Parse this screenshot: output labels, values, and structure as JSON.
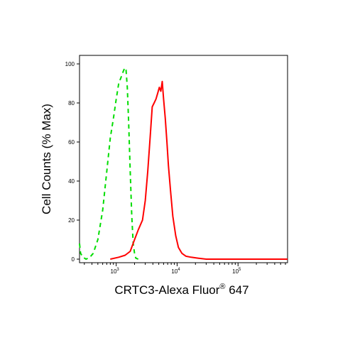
{
  "chart_data": {
    "type": "line",
    "title": "",
    "xlabel": "CRTC3-Alexa Fluor",
    "xlabel_superscript": "®",
    "xlabel_suffix": " 647",
    "ylabel": "Cell Counts (% Max)",
    "xscale": "log",
    "xlim": [
      250,
      650000
    ],
    "ylim": [
      0,
      105
    ],
    "x_ticks": [
      {
        "value": 1000,
        "base": "10",
        "exp": "3"
      },
      {
        "value": 10000,
        "base": "10",
        "exp": "4"
      },
      {
        "value": 100000,
        "base": "10",
        "exp": "5"
      }
    ],
    "y_ticks": [
      0,
      20,
      40,
      60,
      80,
      100
    ],
    "y_tick_labels": [
      "0",
      "20",
      "40",
      "60",
      "80",
      "100"
    ],
    "grid": false,
    "legend": "none",
    "series": [
      {
        "color": "#00dd00",
        "dash": true,
        "x": [
          250,
          260,
          285,
          320,
          370,
          420,
          500,
          600,
          700,
          800,
          900,
          1000,
          1100,
          1200,
          1300,
          1380,
          1450,
          1520,
          1600,
          1700,
          1800,
          1900,
          2000,
          2100,
          2300
        ],
        "y": [
          8,
          3,
          1,
          0,
          1,
          3,
          10,
          25,
          45,
          62,
          72,
          82,
          90,
          93,
          96,
          98,
          97,
          88,
          70,
          45,
          22,
          8,
          3,
          0.5,
          0
        ]
      },
      {
        "color": "#ff0000",
        "dash": false,
        "x": [
          800,
          1100,
          1400,
          1700,
          2000,
          2300,
          2700,
          3000,
          3300,
          3600,
          3900,
          4200,
          4500,
          4800,
          5100,
          5400,
          5700,
          6000,
          6400,
          6800,
          7200,
          7800,
          8500,
          9500,
          10500,
          12000,
          14000,
          17000,
          22000,
          30000,
          50000,
          100000,
          650000
        ],
        "y": [
          0,
          1,
          2,
          4,
          10,
          15,
          20,
          30,
          45,
          62,
          78,
          80,
          82,
          85,
          88,
          86,
          91,
          82,
          72,
          60,
          48,
          35,
          22,
          12,
          6,
          3,
          1.5,
          1,
          0.5,
          0,
          0,
          0,
          0
        ]
      }
    ]
  }
}
